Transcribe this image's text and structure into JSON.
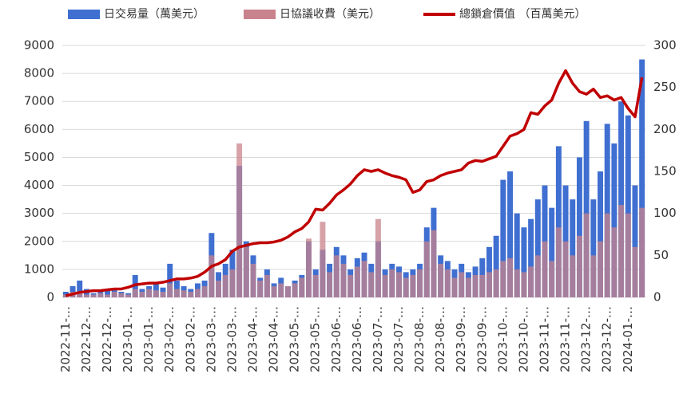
{
  "chart_data": {
    "type": "bar",
    "categories": [
      "2022-11-…",
      null,
      null,
      "2022-12-…",
      null,
      null,
      "2022-12-…",
      null,
      null,
      "2023-01-…",
      null,
      null,
      "2023-01-…",
      null,
      null,
      "2023-02-…",
      null,
      null,
      "2023-02-…",
      null,
      null,
      "2023-03-…",
      null,
      null,
      "2023-03-…",
      null,
      null,
      "2023-04-…",
      null,
      null,
      "2023-04-…",
      null,
      null,
      "2023-05-…",
      null,
      null,
      "2023-05-…",
      null,
      null,
      "2023-06-…",
      null,
      null,
      "2023-06-…",
      null,
      null,
      "2023-07-…",
      null,
      null,
      "2023-07-…",
      null,
      null,
      "2023-08-…",
      null,
      null,
      "2023-08-…",
      null,
      null,
      "2023-09-…",
      null,
      null,
      "2023-09-…",
      null,
      null,
      "2023-10-…",
      null,
      null,
      "2023-10-…",
      null,
      null,
      "2023-11-…",
      null,
      null,
      "2023-11-…",
      null,
      null,
      "2023-12-…",
      null,
      null,
      "2023-12-…",
      null,
      null,
      "2024-01-…",
      null,
      null
    ],
    "series": [
      {
        "name": "日交易量（萬美元）",
        "type": "bar",
        "color": "#3f6fd1",
        "values": [
          200,
          400,
          600,
          300,
          150,
          200,
          250,
          300,
          200,
          150,
          800,
          300,
          400,
          500,
          350,
          1200,
          600,
          400,
          300,
          500,
          600,
          2300,
          900,
          1200,
          1700,
          4700,
          2000,
          1500,
          700,
          1000,
          500,
          700,
          400,
          600,
          800,
          2000,
          1000,
          1700,
          1200,
          1800,
          1500,
          1000,
          1400,
          1600,
          1200,
          2000,
          1000,
          1200,
          1100,
          900,
          1000,
          1200,
          2500,
          3200,
          1500,
          1300,
          1000,
          1200,
          900,
          1100,
          1400,
          1800,
          2200,
          4200,
          4500,
          3000,
          2500,
          2800,
          3500,
          4000,
          3200,
          5400,
          4000,
          3500,
          5000,
          6300,
          3500,
          4500,
          6200,
          5500,
          7000,
          6500,
          4000,
          8500
        ]
      },
      {
        "name": "日協議收費（美元）",
        "type": "bar",
        "color": "#c9838c",
        "values": [
          100,
          200,
          150,
          100,
          100,
          150,
          100,
          200,
          150,
          100,
          300,
          200,
          300,
          250,
          200,
          500,
          300,
          250,
          200,
          300,
          400,
          1500,
          600,
          800,
          1000,
          5500,
          1800,
          1200,
          600,
          800,
          400,
          500,
          400,
          500,
          700,
          2100,
          800,
          2700,
          900,
          1500,
          1200,
          800,
          1100,
          1300,
          900,
          2800,
          800,
          1000,
          900,
          700,
          800,
          1000,
          2000,
          2400,
          1200,
          1000,
          700,
          900,
          700,
          800,
          800,
          900,
          1000,
          1300,
          1400,
          1000,
          900,
          1100,
          1500,
          2000,
          1300,
          2500,
          2000,
          1500,
          2200,
          3000,
          1500,
          2000,
          3000,
          2500,
          3300,
          3000,
          1800,
          3200
        ]
      },
      {
        "name": "總鎖倉價值 （百萬美元）",
        "type": "line",
        "axis": "y2",
        "color": "#c00000",
        "values": [
          2,
          4,
          6,
          7,
          8,
          8,
          9,
          10,
          10,
          12,
          15,
          16,
          17,
          17,
          18,
          20,
          22,
          22,
          23,
          25,
          30,
          37,
          40,
          45,
          55,
          60,
          62,
          64,
          65,
          65,
          66,
          68,
          72,
          78,
          82,
          90,
          105,
          104,
          112,
          122,
          128,
          135,
          145,
          152,
          150,
          152,
          148,
          145,
          143,
          140,
          125,
          128,
          138,
          140,
          145,
          148,
          150,
          152,
          160,
          163,
          162,
          165,
          168,
          180,
          192,
          195,
          200,
          220,
          218,
          228,
          235,
          255,
          270,
          255,
          245,
          242,
          248,
          238,
          240,
          235,
          238,
          225,
          215,
          262
        ]
      }
    ],
    "ylim": [
      0,
      9000
    ],
    "yticks": [
      0,
      1000,
      2000,
      3000,
      4000,
      5000,
      6000,
      7000,
      8000,
      9000
    ],
    "y2lim": [
      0,
      300
    ],
    "y2ticks": [
      0,
      50,
      100,
      150,
      200,
      250,
      300
    ],
    "grid": true,
    "legend": "top"
  }
}
